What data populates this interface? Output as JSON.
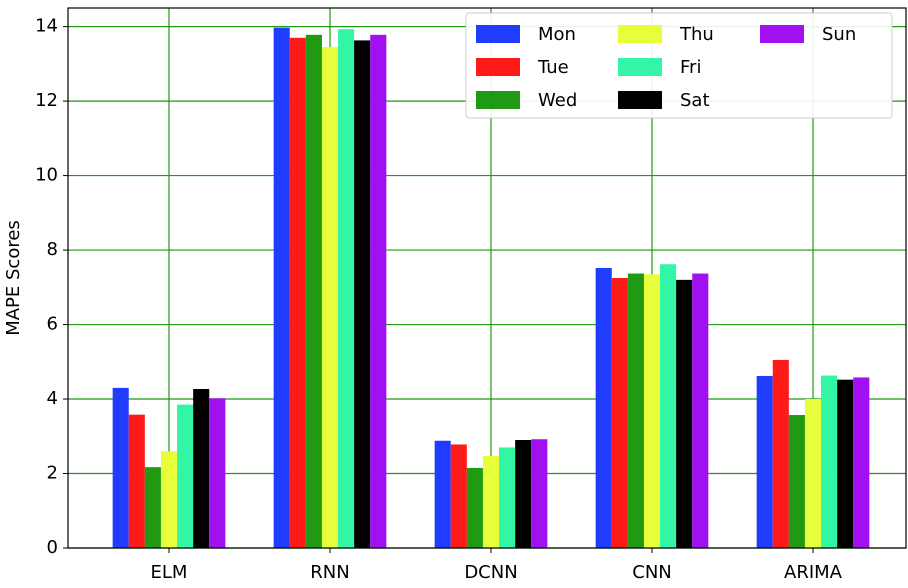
{
  "chart_data": {
    "type": "bar",
    "ylabel": "MAPE Scores",
    "categories": [
      "ELM",
      "RNN",
      "DCNN",
      "CNN",
      "ARIMA"
    ],
    "series": [
      {
        "name": "Mon",
        "color": "#1f3cff",
        "values": [
          4.3,
          13.97,
          2.88,
          7.52,
          4.62
        ]
      },
      {
        "name": "Tue",
        "color": "#ff1a1a",
        "values": [
          3.58,
          13.7,
          2.78,
          7.25,
          5.05
        ]
      },
      {
        "name": "Wed",
        "color": "#1f9a12",
        "values": [
          2.17,
          13.78,
          2.15,
          7.37,
          3.57
        ]
      },
      {
        "name": "Thu",
        "color": "#e6ff3a",
        "values": [
          2.6,
          13.45,
          2.47,
          7.35,
          4.0
        ]
      },
      {
        "name": "Fri",
        "color": "#33f5a6",
        "values": [
          3.85,
          13.93,
          2.7,
          7.62,
          4.63
        ]
      },
      {
        "name": "Sat",
        "color": "#000000",
        "values": [
          4.27,
          13.63,
          2.9,
          7.2,
          4.52
        ]
      },
      {
        "name": "Sun",
        "color": "#a010f0",
        "values": [
          4.02,
          13.78,
          2.92,
          7.37,
          4.58
        ]
      }
    ],
    "ylim": [
      0,
      14.5
    ],
    "yticks": [
      0,
      2,
      4,
      6,
      8,
      10,
      12,
      14
    ],
    "grid": true,
    "grid_color": "#1f9a12",
    "legend": "upper right"
  }
}
